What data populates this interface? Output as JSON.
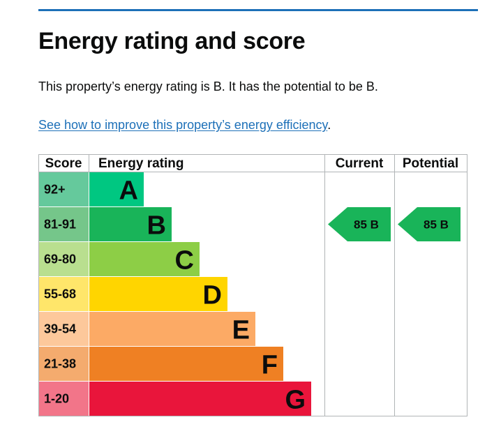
{
  "page": {
    "title": "Energy rating and score",
    "summary": "This property’s energy rating is B. It has the potential to be B.",
    "improve_link": "See how to improve this property’s energy efficiency",
    "improve_suffix": "."
  },
  "colors": {
    "link": "#1d70b8",
    "rule": "#1d70b8",
    "text": "#0b0c0c",
    "border": "#b1b4b6"
  },
  "chart_data": {
    "type": "table",
    "headers": {
      "score": "Score",
      "rating": "Energy rating",
      "current": "Current",
      "potential": "Potential"
    },
    "bands": [
      {
        "letter": "A",
        "range": "92+",
        "color": "#00c781",
        "score_bg": "#65c99c"
      },
      {
        "letter": "B",
        "range": "81-91",
        "color": "#19b459",
        "score_bg": "#75c68a"
      },
      {
        "letter": "C",
        "range": "69-80",
        "color": "#8dce46",
        "score_bg": "#b9df8f"
      },
      {
        "letter": "D",
        "range": "55-68",
        "color": "#ffd500",
        "score_bg": "#ffe66a"
      },
      {
        "letter": "E",
        "range": "39-54",
        "color": "#fcaa65",
        "score_bg": "#fdc89b"
      },
      {
        "letter": "F",
        "range": "21-38",
        "color": "#ef8023",
        "score_bg": "#f4ab6e"
      },
      {
        "letter": "G",
        "range": "1-20",
        "color": "#e9153b",
        "score_bg": "#f27589"
      }
    ],
    "current": {
      "score": 85,
      "letter": "B",
      "label": "85  B",
      "color": "#19b459"
    },
    "potential": {
      "score": 85,
      "letter": "B",
      "label": "85  B",
      "color": "#19b459"
    }
  }
}
